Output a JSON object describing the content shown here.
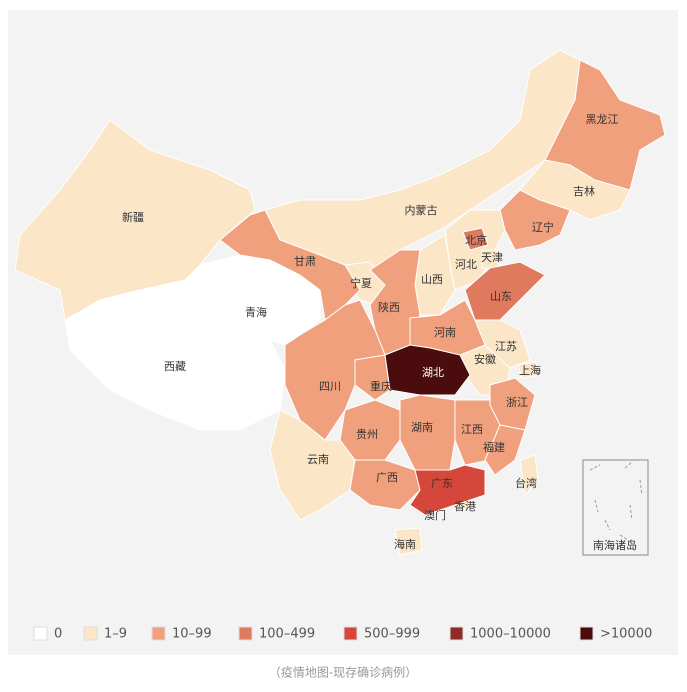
{
  "map": {
    "legend": [
      {
        "label": "0",
        "color": "#ffffff",
        "regions": [
          "西藏",
          "青海"
        ]
      },
      {
        "label": "1–9",
        "color": "#fbe6c8",
        "regions": [
          "新疆",
          "内蒙古",
          "吉林",
          "宁夏",
          "山西",
          "河北",
          "天津",
          "安徽",
          "江苏",
          "上海",
          "云南",
          "海南",
          "香港",
          "澳门",
          "台湾"
        ]
      },
      {
        "label": "10–99",
        "color": "#f0a07c",
        "regions": [
          "黑龙江",
          "辽宁",
          "甘肃",
          "陕西",
          "四川",
          "重庆",
          "贵州",
          "湖南",
          "江西",
          "广西",
          "浙江",
          "福建",
          "河南"
        ]
      },
      {
        "label": "100–499",
        "color": "#e07a5f",
        "regions": [
          "北京",
          "山东"
        ]
      },
      {
        "label": "500–999",
        "color": "#d5473a",
        "regions": [
          "广东"
        ]
      },
      {
        "label": "1000–10000",
        "color": "#8f2a26",
        "regions": []
      },
      {
        "label": ">10000",
        "color": "#4a0c0c",
        "regions": [
          "湖北"
        ]
      }
    ],
    "inset_label": "南海诸岛"
  },
  "caption": "（疫情地图-现存确诊病例）"
}
